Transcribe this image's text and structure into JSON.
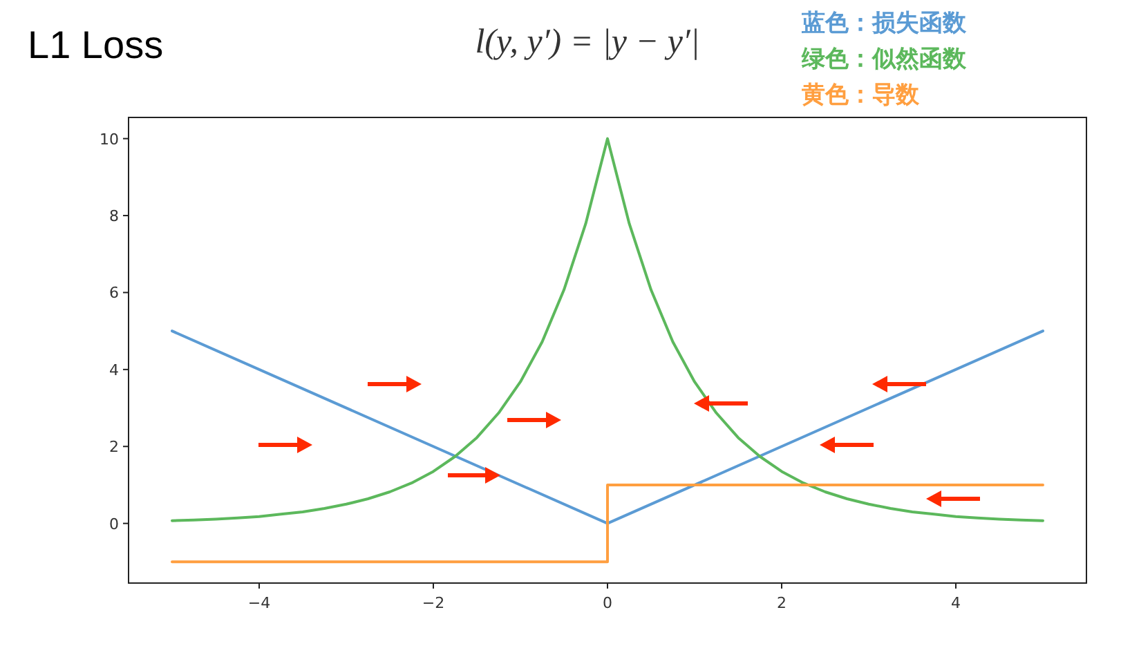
{
  "chart_data": {
    "type": "line",
    "title": "L1 Loss",
    "subtitle": "l(y, y′) = |y − y′|",
    "xlim": [
      -5.5,
      5.5
    ],
    "ylim": [
      -1.55,
      10.55
    ],
    "xticks": [
      -4,
      -2,
      0,
      2,
      4
    ],
    "yticks": [
      0,
      2,
      4,
      6,
      8,
      10
    ],
    "grid": false,
    "legend": "top right",
    "series": [
      {
        "name": "蓝色：损失函数",
        "color": "#5b9bd4",
        "type": "line",
        "x": [
          -5,
          0,
          5
        ],
        "values": [
          5,
          0,
          5
        ]
      },
      {
        "name": "绿色：似然函数",
        "color": "#5cb85c",
        "type": "line",
        "x": [
          -5,
          -4.75,
          -4.5,
          -4.25,
          -4,
          -3.75,
          -3.5,
          -3.25,
          -3,
          -2.75,
          -2.5,
          -2.25,
          -2,
          -1.75,
          -1.5,
          -1.25,
          -1,
          -0.75,
          -0.5,
          -0.25,
          0,
          0.25,
          0.5,
          0.75,
          1,
          1.25,
          1.5,
          1.75,
          2,
          2.25,
          2.5,
          2.75,
          3,
          3.25,
          3.5,
          3.75,
          4,
          4.25,
          4.5,
          4.75,
          5
        ],
        "values": [
          0.07,
          0.09,
          0.11,
          0.14,
          0.18,
          0.24,
          0.3,
          0.39,
          0.5,
          0.64,
          0.82,
          1.05,
          1.35,
          1.74,
          2.23,
          2.87,
          3.68,
          4.72,
          6.07,
          7.79,
          10,
          7.79,
          6.07,
          4.72,
          3.68,
          2.87,
          2.23,
          1.74,
          1.35,
          1.05,
          0.82,
          0.64,
          0.5,
          0.39,
          0.3,
          0.24,
          0.18,
          0.14,
          0.11,
          0.09,
          0.07
        ]
      },
      {
        "name": "黄色：导数",
        "color": "#ff9f40",
        "type": "step",
        "x": [
          -5,
          0,
          5
        ],
        "values": [
          -1,
          1,
          1
        ]
      }
    ]
  }
}
